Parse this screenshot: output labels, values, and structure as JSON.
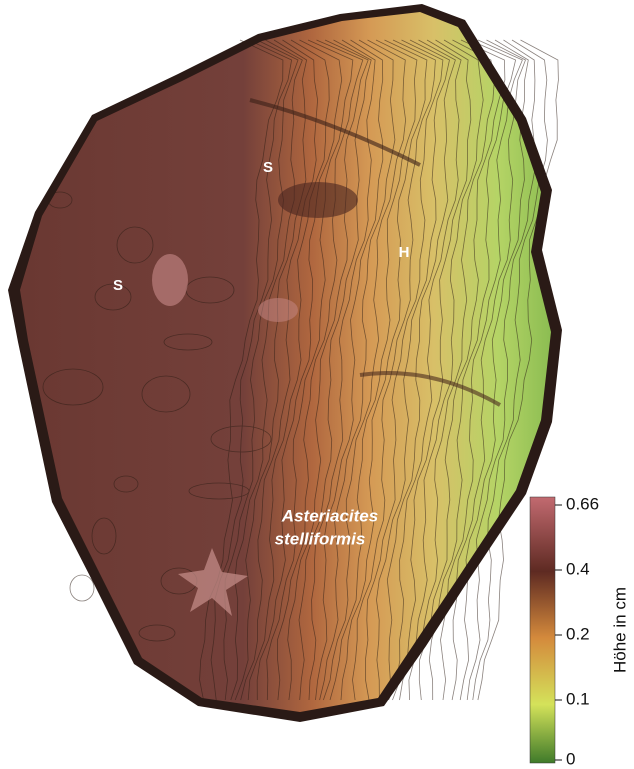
{
  "annotations": [
    "S",
    "S",
    "H"
  ],
  "species": {
    "genus": "Asteriacites",
    "epithet": "stelliformis"
  },
  "colorbar": {
    "label": "Höhe in cm",
    "ticks": [
      0.66,
      0.4,
      0.2,
      0.1,
      0
    ]
  }
}
